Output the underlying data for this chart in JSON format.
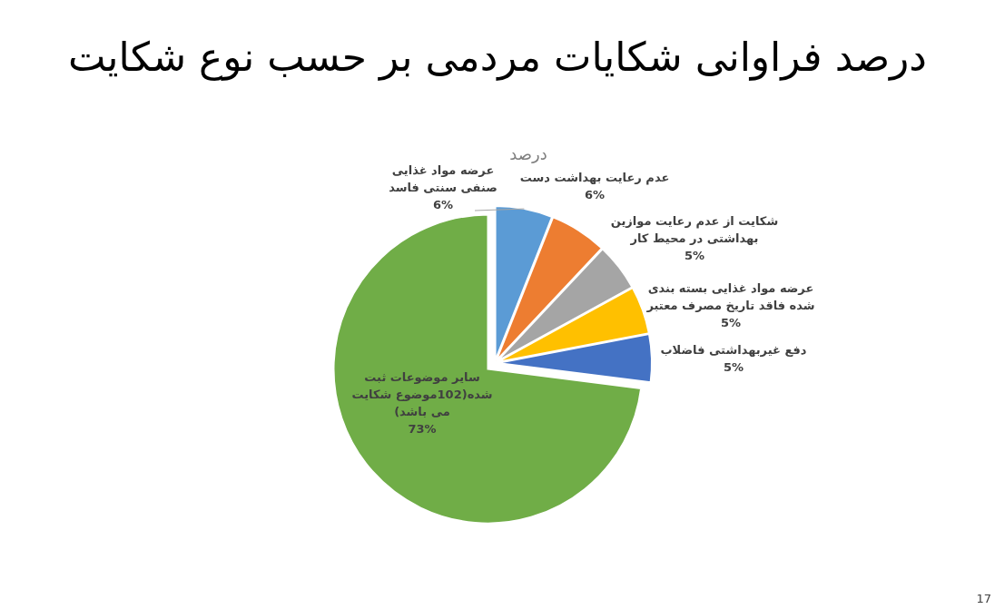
{
  "chart_data": {
    "type": "pie",
    "title": "درصد فراوانی شکایات مردمی بر حسب نوع شکایت",
    "subtitle": "درصد",
    "categories": [
      "عرضه مواد غذایی صنفی سنتی فاسد",
      "عدم رعایت بهداشت دست",
      "شکایت از عدم رعایت موازین بهداشتی در محیط کار",
      "عرضه مواد غذایی بسته بندی شده فاقد تاریخ مصرف معتبر",
      "دفع غیربهداشتی فاضلاب",
      "سایر موضوعات ثبت شده(102موضوع شکایت می باشد)"
    ],
    "values": [
      6,
      6,
      5,
      5,
      5,
      73
    ],
    "value_labels": [
      "6%",
      "6%",
      "5%",
      "5%",
      "5%",
      "73%"
    ],
    "colors": [
      "#5b9bd5",
      "#ed7d31",
      "#a5a5a5",
      "#ffc000",
      "#4472c4",
      "#70ad47"
    ],
    "legend": false,
    "annotations": [
      "17"
    ]
  }
}
